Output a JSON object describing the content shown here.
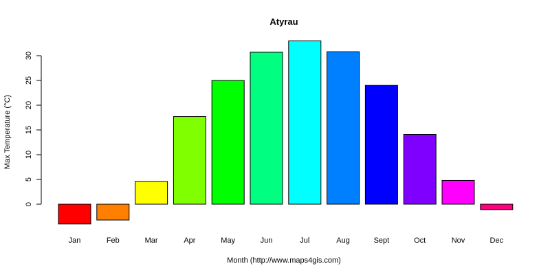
{
  "chart_data": {
    "type": "bar",
    "title": "Atyrau",
    "xlabel": "Month (http://www.maps4gis.com)",
    "ylabel": "Max Temperature (°C)",
    "ylim": [
      -6,
      33
    ],
    "yticks": [
      0,
      5,
      10,
      15,
      20,
      25,
      30
    ],
    "categories": [
      "Jan",
      "Feb",
      "Mar",
      "Apr",
      "May",
      "Jun",
      "Jul",
      "Aug",
      "Sept",
      "Oct",
      "Nov",
      "Dec"
    ],
    "values": [
      -4.0,
      -3.2,
      4.6,
      17.7,
      25.0,
      30.7,
      33.0,
      30.8,
      24.0,
      14.1,
      4.8,
      -1.1
    ],
    "colors": [
      "#FF0000",
      "#FF8000",
      "#FFFF00",
      "#80FF00",
      "#00FF00",
      "#00FF80",
      "#00FFFF",
      "#0080FF",
      "#0000FF",
      "#8000FF",
      "#FF00FF",
      "#FF0080"
    ],
    "grid": false,
    "legend": "none"
  }
}
